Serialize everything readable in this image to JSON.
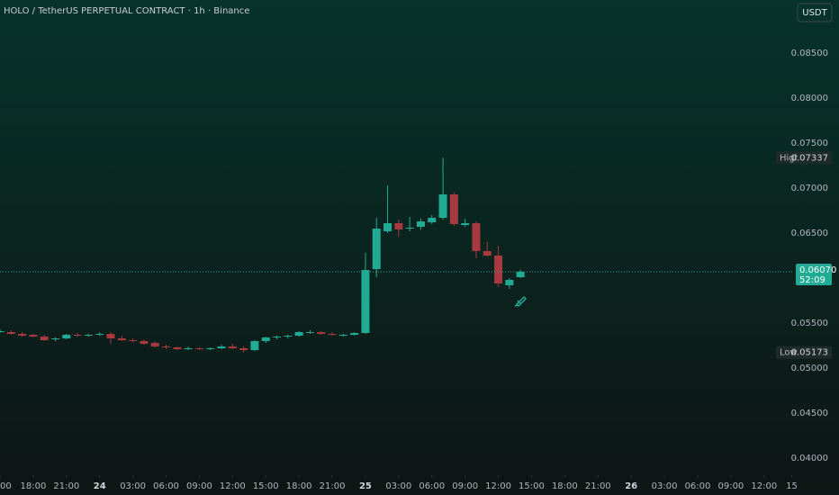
{
  "chart_data": {
    "type": "candlestick",
    "title": "HOLO / TetherUS PERPETUAL CONTRACT · 1h · Binance",
    "quote_button": "USDT",
    "x": [
      -9,
      -8,
      -7,
      -6,
      -5,
      -4,
      -3,
      -2,
      -1,
      0,
      1,
      2,
      3,
      4,
      5,
      6,
      7,
      8,
      9,
      10,
      11,
      12,
      13,
      14,
      15,
      16,
      17,
      18,
      19,
      20,
      21,
      22,
      23,
      24,
      25,
      26,
      27,
      28,
      29,
      30,
      31,
      32,
      33,
      34,
      35,
      36,
      37,
      38
    ],
    "open": [
      0.0541,
      0.054,
      0.0538,
      0.0537,
      0.0535,
      0.0532,
      0.0533,
      0.0537,
      0.0536,
      0.0537,
      0.0538,
      0.0533,
      0.0531,
      0.053,
      0.0528,
      0.0524,
      0.0523,
      0.0521,
      0.0522,
      0.0521,
      0.0522,
      0.0524,
      0.0522,
      0.052,
      0.053,
      0.0534,
      0.0535,
      0.0536,
      0.0539,
      0.054,
      0.0538,
      0.0537,
      0.0537,
      0.0539,
      0.061,
      0.0652,
      0.0661,
      0.0655,
      0.0657,
      0.0662,
      0.0667,
      0.0693,
      0.0659,
      0.0661,
      0.063,
      0.0625,
      0.0592,
      0.0601
    ],
    "high": [
      0.0543,
      0.0542,
      0.054,
      0.0538,
      0.0537,
      0.0534,
      0.0538,
      0.0539,
      0.0538,
      0.054,
      0.054,
      0.0536,
      0.0533,
      0.0532,
      0.053,
      0.0526,
      0.0524,
      0.0524,
      0.0523,
      0.0523,
      0.0526,
      0.0527,
      0.0524,
      0.0531,
      0.0535,
      0.0536,
      0.0537,
      0.0541,
      0.0542,
      0.0541,
      0.054,
      0.0538,
      0.054,
      0.0628,
      0.0667,
      0.0703,
      0.0665,
      0.0668,
      0.0666,
      0.067,
      0.07337,
      0.0695,
      0.0666,
      0.0663,
      0.064,
      0.0636,
      0.06,
      0.0609
    ],
    "low": [
      0.0539,
      0.0537,
      0.0535,
      0.0534,
      0.053,
      0.053,
      0.0532,
      0.0535,
      0.0535,
      0.0536,
      0.0527,
      0.053,
      0.0529,
      0.0526,
      0.0523,
      0.0521,
      0.052,
      0.052,
      0.052,
      0.052,
      0.0521,
      0.0521,
      0.05173,
      0.0519,
      0.0528,
      0.0532,
      0.0533,
      0.0535,
      0.0538,
      0.0537,
      0.0536,
      0.0535,
      0.0536,
      0.0538,
      0.0601,
      0.065,
      0.0646,
      0.0652,
      0.0654,
      0.066,
      0.0665,
      0.0658,
      0.0657,
      0.0622,
      0.0624,
      0.059,
      0.0588,
      0.06
    ],
    "close": [
      0.0541,
      0.0538,
      0.0536,
      0.0535,
      0.0531,
      0.0533,
      0.0537,
      0.0536,
      0.0537,
      0.0538,
      0.0533,
      0.0531,
      0.053,
      0.0527,
      0.0524,
      0.0523,
      0.0521,
      0.0522,
      0.0521,
      0.0522,
      0.0524,
      0.0522,
      0.052,
      0.053,
      0.0534,
      0.0535,
      0.0536,
      0.054,
      0.054,
      0.0538,
      0.0537,
      0.0537,
      0.0539,
      0.0609,
      0.0655,
      0.0661,
      0.0654,
      0.0656,
      0.0663,
      0.0667,
      0.0693,
      0.066,
      0.0661,
      0.063,
      0.0625,
      0.0594,
      0.0598,
      0.0607
    ],
    "up_color": "#22ab94",
    "down_color": "#a8393e",
    "xlim": [
      -9,
      62.7
    ],
    "ylim": [
      0.0381,
      0.0909
    ],
    "xticks": [
      {
        "value": -9,
        "label": "00"
      },
      {
        "value": -6,
        "label": "18:00"
      },
      {
        "value": -3,
        "label": "21:00"
      },
      {
        "value": 0,
        "label": "24"
      },
      {
        "value": 3,
        "label": "03:00"
      },
      {
        "value": 6,
        "label": "06:00"
      },
      {
        "value": 9,
        "label": "09:00"
      },
      {
        "value": 12,
        "label": "12:00"
      },
      {
        "value": 15,
        "label": "15:00"
      },
      {
        "value": 18,
        "label": "18:00"
      },
      {
        "value": 21,
        "label": "21:00"
      },
      {
        "value": 24,
        "label": "25"
      },
      {
        "value": 27,
        "label": "03:00"
      },
      {
        "value": 30,
        "label": "06:00"
      },
      {
        "value": 33,
        "label": "09:00"
      },
      {
        "value": 36,
        "label": "12:00"
      },
      {
        "value": 39,
        "label": "15:00"
      },
      {
        "value": 42,
        "label": "18:00"
      },
      {
        "value": 45,
        "label": "21:00"
      },
      {
        "value": 48,
        "label": "26"
      },
      {
        "value": 51,
        "label": "03:00"
      },
      {
        "value": 54,
        "label": "06:00"
      },
      {
        "value": 57,
        "label": "09:00"
      },
      {
        "value": 60,
        "label": "12:00"
      },
      {
        "value": 62.5,
        "label": "15"
      }
    ],
    "yticks": [
      {
        "value": 0.04,
        "label": "0.04000"
      },
      {
        "value": 0.045,
        "label": "0.04500"
      },
      {
        "value": 0.05,
        "label": "0.05000"
      },
      {
        "value": 0.055,
        "label": "0.05500"
      },
      {
        "value": 0.065,
        "label": "0.06500"
      },
      {
        "value": 0.07,
        "label": "0.07000"
      },
      {
        "value": 0.075,
        "label": "0.07500"
      },
      {
        "value": 0.08,
        "label": "0.08000"
      },
      {
        "value": 0.085,
        "label": "0.08500"
      }
    ],
    "high_marker": {
      "name": "High",
      "value": 0.07337,
      "label": "0.07337"
    },
    "low_marker": {
      "name": "Low",
      "value": 0.05173,
      "label": "0.05173"
    },
    "last_price": {
      "value": 0.0607,
      "label": "0.06070"
    },
    "countdown": "52:09"
  }
}
